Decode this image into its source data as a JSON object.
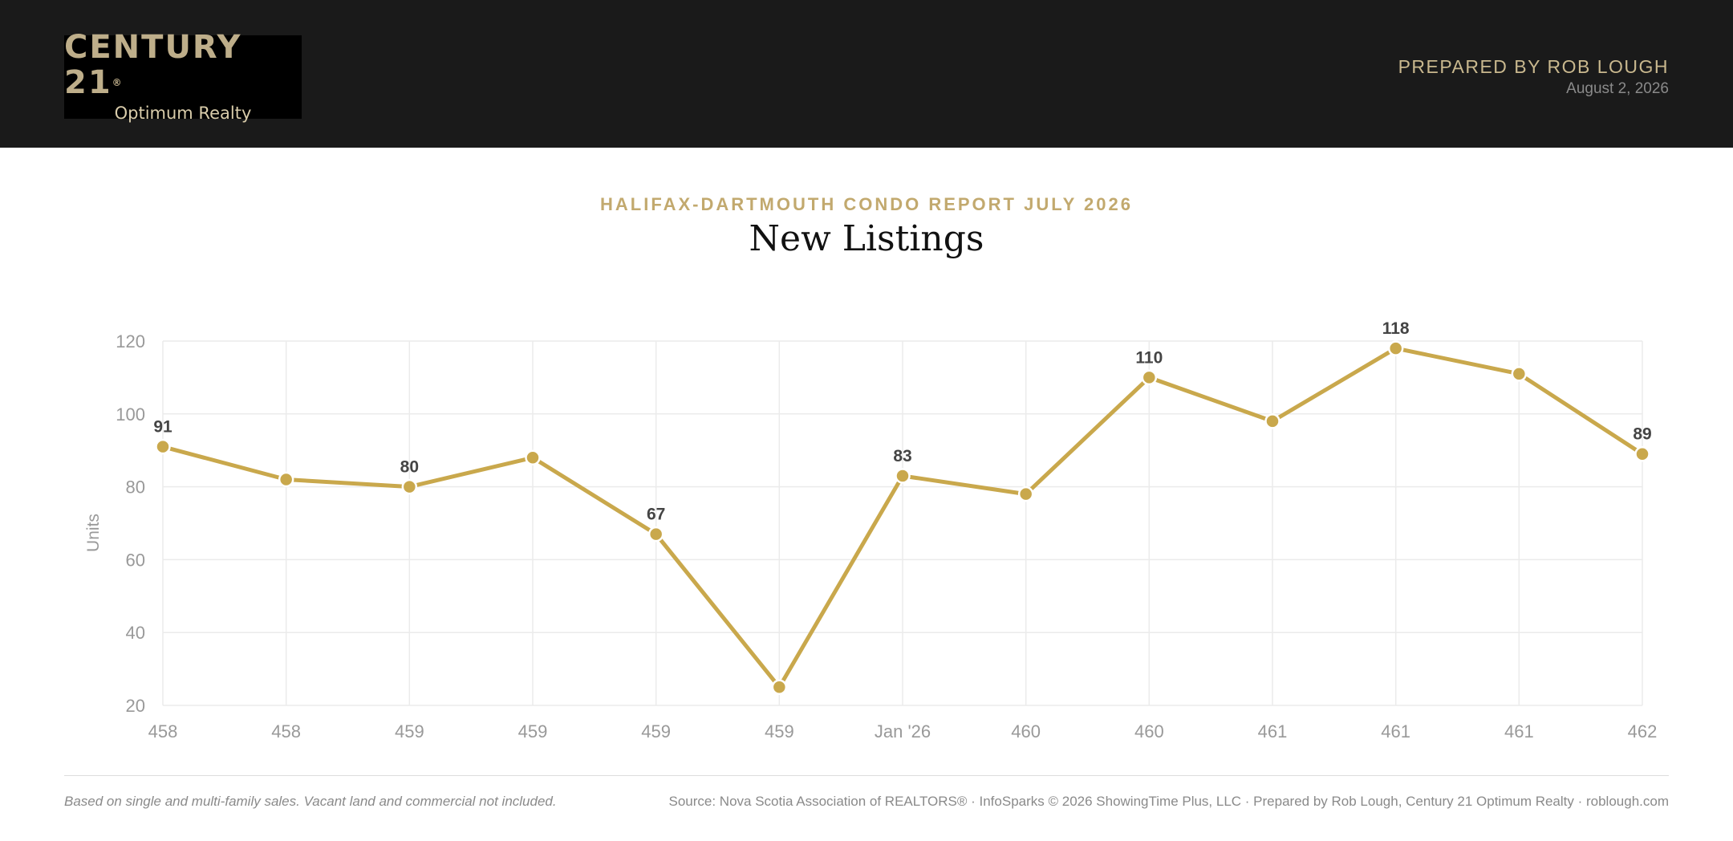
{
  "header": {
    "logo_name": "CENTURY 21",
    "logo_reg": "®",
    "logo_sub": "Optimum Realty",
    "prepared_by": "PREPARED BY ROB LOUGH",
    "date": "August 2, 2026"
  },
  "report": {
    "eyebrow": "HALIFAX-DARTMOUTH CONDO REPORT JULY 2026",
    "title": "New Listings"
  },
  "chart_data": {
    "type": "line",
    "title": "New Listings",
    "ylabel": "Units",
    "xlabel": "",
    "ylim": [
      20,
      120
    ],
    "yticks": [
      20,
      40,
      60,
      80,
      100,
      120
    ],
    "grid": true,
    "categories": [
      "458",
      "458",
      "459",
      "459",
      "459",
      "459",
      "Jan '26",
      "460",
      "460",
      "461",
      "461",
      "461",
      "462"
    ],
    "series": [
      {
        "values": [
          91,
          82,
          80,
          88,
          67,
          25,
          83,
          78,
          110,
          98,
          118,
          111,
          89
        ]
      }
    ],
    "data_labels": [
      {
        "index": 0,
        "text": "91"
      },
      {
        "index": 2,
        "text": "80"
      },
      {
        "index": 4,
        "text": "67"
      },
      {
        "index": 6,
        "text": "83"
      },
      {
        "index": 8,
        "text": "110"
      },
      {
        "index": 10,
        "text": "118"
      },
      {
        "index": 12,
        "text": "89"
      }
    ],
    "line_color": "#c9a84c"
  },
  "footer": {
    "note": "Based on single and multi-family sales. Vacant land and commercial not included.",
    "source": "Source: Nova Scotia Association of REALTORS® · InfoSparks © 2026 ShowingTime Plus, LLC · Prepared by Rob Lough, Century 21 Optimum Realty · roblough.com"
  }
}
